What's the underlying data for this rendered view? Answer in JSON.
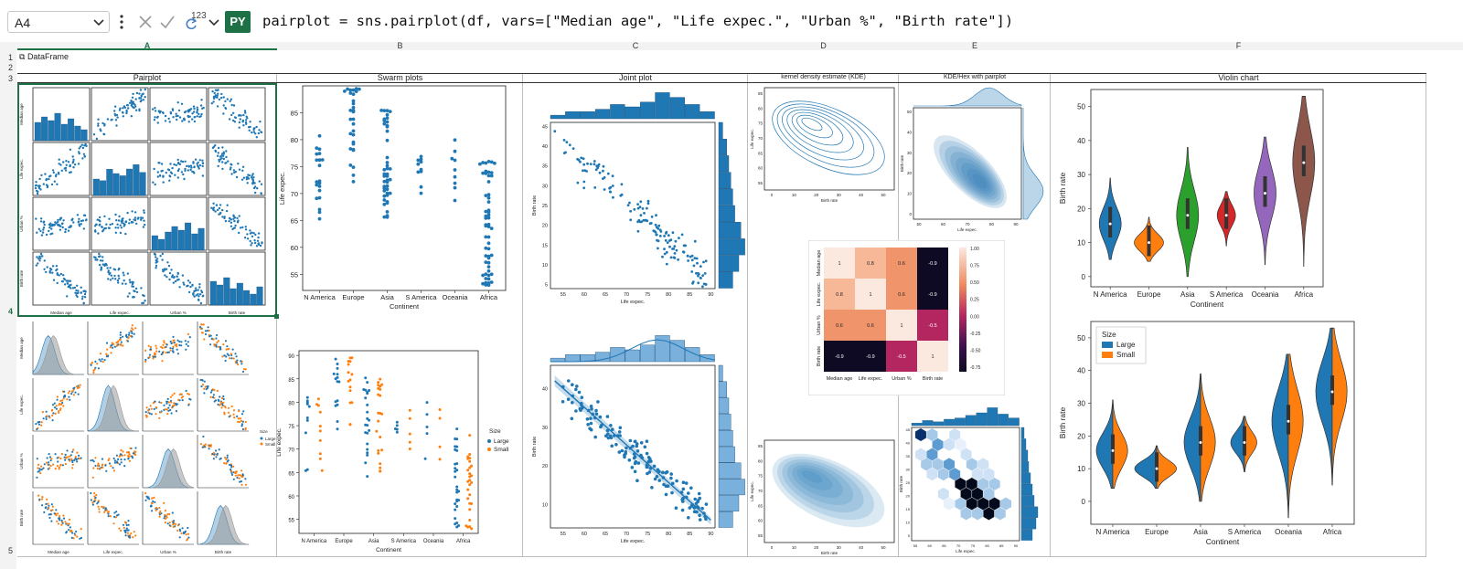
{
  "formula_bar": {
    "name_box": "A4",
    "type_glyph": "123",
    "py_badge": "PY",
    "formula": "pairplot = sns.pairplot(df, vars=[\"Median age\", \"Life expec.\", \"Urban %\", \"Birth rate\"])"
  },
  "columns": [
    "A",
    "B",
    "C",
    "D",
    "E",
    "F"
  ],
  "rows": [
    "1",
    "2",
    "3",
    "4",
    "5"
  ],
  "cell_a1": "DataFrame",
  "section_titles": {
    "pairplot": "Pairplot",
    "swarm": "Swarm plots",
    "joint": "Joint plot",
    "kde": "kernel density estimate (KDE)",
    "kdehex": "KDE/Hex with pairplot",
    "violin": "Violin chart"
  },
  "colors": {
    "large": "#1f77b4",
    "small": "#ff7f0e",
    "excel_green": "#1e7145",
    "oceania_violin": "#9467bd",
    "africa_violin": "#8c564b",
    "asia_violin": "#2ca02c",
    "samerica_violin": "#d62728"
  },
  "pairplot": {
    "vars": [
      "Median age",
      "Life expec.",
      "Urban %",
      "Birth rate"
    ],
    "hue_legend_title": "Size",
    "hue_legend": [
      "Large",
      "Small"
    ]
  },
  "chart_data": [
    {
      "id": "swarm_single",
      "type": "scatter",
      "title": "",
      "xlabel": "Continent",
      "ylabel": "Life expec.",
      "categories": [
        "N America",
        "Europe",
        "Asia",
        "S America",
        "Oceania",
        "Africa"
      ],
      "ylim": [
        52,
        90
      ],
      "yticks": [
        55,
        60,
        65,
        70,
        75,
        80,
        85
      ],
      "ranges": [
        [
          64.5,
          82
        ],
        [
          72,
          89.5
        ],
        [
          64,
          85.5
        ],
        [
          69,
          79
        ],
        [
          67,
          82
        ],
        [
          53,
          77
        ]
      ]
    },
    {
      "id": "swarm_hue",
      "type": "scatter",
      "title": "",
      "xlabel": "Continent",
      "ylabel": "Life expec.",
      "categories": [
        "N America",
        "Europe",
        "Asia",
        "S America",
        "Oceania",
        "Africa"
      ],
      "ylim": [
        52,
        91
      ],
      "yticks": [
        55,
        60,
        65,
        70,
        75,
        80,
        85,
        90
      ],
      "legend": {
        "title": "Size",
        "entries": [
          "Large",
          "Small"
        ]
      }
    },
    {
      "id": "joint_scatter",
      "type": "scatter",
      "xlabel": "Life expec.",
      "ylabel": "Birth rate",
      "xlim": [
        52,
        91
      ],
      "ylim": [
        4,
        46
      ],
      "xticks": [
        55,
        60,
        65,
        70,
        75,
        80,
        85,
        90
      ],
      "yticks": [
        5,
        10,
        15,
        20,
        25,
        30,
        35,
        40,
        45
      ],
      "trend": {
        "x": [
          53,
          90
        ],
        "y": [
          42,
          6
        ]
      }
    },
    {
      "id": "joint_reg",
      "type": "scatter",
      "xlabel": "Life expec.",
      "ylabel": "Birth rate",
      "xlim": [
        52,
        91
      ],
      "ylim": [
        4,
        46
      ],
      "xticks": [
        55,
        60,
        65,
        70,
        75,
        80,
        85,
        90
      ],
      "yticks": [
        10,
        20,
        30,
        40
      ],
      "regression": {
        "x": [
          53,
          90
        ],
        "y": [
          42,
          6
        ]
      }
    },
    {
      "id": "kde_top",
      "type": "area",
      "xlabel": "Birth rate",
      "ylabel": "Life expec.",
      "xticks": [
        0,
        10,
        20,
        30,
        40,
        50
      ],
      "yticks": [
        55,
        60,
        65,
        70,
        75,
        80,
        85
      ]
    },
    {
      "id": "kde_bottom",
      "type": "area",
      "xlabel": "Birth rate",
      "ylabel": "Life expec.",
      "xticks": [
        0,
        10,
        20,
        30,
        40,
        50
      ],
      "yticks": [
        55,
        60,
        65,
        70,
        75,
        80,
        85
      ]
    },
    {
      "id": "heatmap",
      "type": "heatmap",
      "labels": [
        "Median age",
        "Life expec.",
        "Urban %",
        "Birth rate"
      ],
      "matrix": [
        [
          1,
          0.8,
          0.6,
          -0.9
        ],
        [
          0.8,
          1,
          0.6,
          -0.9
        ],
        [
          0.6,
          0.6,
          1,
          -0.5
        ],
        [
          -0.9,
          -0.9,
          -0.5,
          1
        ]
      ],
      "colorbar_ticks": [
        "1.00",
        "0.75",
        "0.50",
        "0.25",
        "0.00",
        "-0.25",
        "-0.50",
        "-0.75"
      ]
    },
    {
      "id": "kde_joint",
      "type": "area",
      "xlabel": "Life expec.",
      "ylabel": "Birth rate",
      "xticks": [
        50,
        60,
        70,
        80,
        90
      ],
      "yticks": [
        0,
        10,
        20,
        30,
        40,
        50
      ]
    },
    {
      "id": "hex_joint",
      "type": "heatmap",
      "xlabel": "Life expec.",
      "ylabel": "Birth rate",
      "xticks": [
        55,
        60,
        65,
        70,
        75,
        80,
        85,
        90
      ],
      "yticks": [
        5,
        10,
        15,
        20,
        25,
        30,
        35,
        40,
        45
      ]
    },
    {
      "id": "violin_single",
      "type": "area",
      "xlabel": "Continent",
      "ylabel": "Birth rate",
      "categories": [
        "N America",
        "Europe",
        "Asia",
        "S America",
        "Oceania",
        "Africa"
      ],
      "ylim": [
        -3,
        55
      ],
      "yticks": [
        0,
        10,
        20,
        30,
        40,
        50
      ],
      "ranges": [
        [
          5,
          29
        ],
        [
          4.5,
          17.5
        ],
        [
          0,
          38
        ],
        [
          9,
          25
        ],
        [
          3.5,
          41
        ],
        [
          3,
          53
        ]
      ],
      "medians": [
        15.5,
        10,
        18,
        18,
        24.5,
        33.5
      ]
    },
    {
      "id": "violin_split",
      "type": "area",
      "xlabel": "Continent",
      "ylabel": "Birth rate",
      "categories": [
        "N America",
        "Europe",
        "Asia",
        "S America",
        "Oceania",
        "Africa"
      ],
      "ylim": [
        -7,
        55
      ],
      "yticks": [
        0,
        10,
        20,
        30,
        40,
        50
      ],
      "legend": {
        "title": "Size",
        "entries": [
          "Large",
          "Small"
        ]
      },
      "medians": [
        15.5,
        10,
        18,
        18,
        24.5,
        33.5
      ]
    }
  ]
}
